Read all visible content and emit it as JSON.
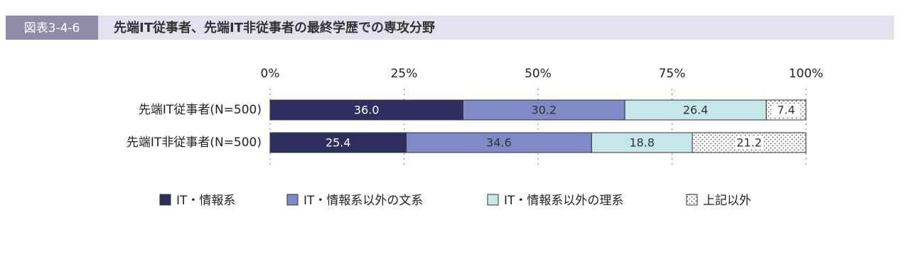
{
  "chart_data": {
    "type": "stacked_barh",
    "figure_label": "図表3-4-6",
    "title": "先端IT従事者、先端IT非従事者の最終学歴での専攻分野",
    "categories": [
      "先端IT従事者(N=500)",
      "先端IT非従事者(N=500)"
    ],
    "series": [
      {
        "name": "IT・情報系",
        "color": "#2f2f5f",
        "values": [
          36.0,
          25.4
        ],
        "value_labels": [
          "36.0",
          "25.4"
        ]
      },
      {
        "name": "IT・情報系以外の文系",
        "color": "#7f8bc7",
        "values": [
          30.2,
          34.6
        ]
      },
      {
        "name": "IT・情報系以外の理系",
        "color": "#c5e7e9",
        "values": [
          26.4,
          18.8
        ]
      },
      {
        "name": "上記以外",
        "color": "#ffffff",
        "fill_pattern": "dots",
        "values": [
          7.4,
          21.2
        ]
      }
    ],
    "xlim": [
      0,
      100
    ],
    "xticks": [
      {
        "value": 0,
        "label": "0%"
      },
      {
        "value": 25,
        "label": "25%"
      },
      {
        "value": 50,
        "label": "50%"
      },
      {
        "value": 75,
        "label": "75%"
      },
      {
        "value": 100,
        "label": "100%"
      }
    ],
    "grid": true
  }
}
